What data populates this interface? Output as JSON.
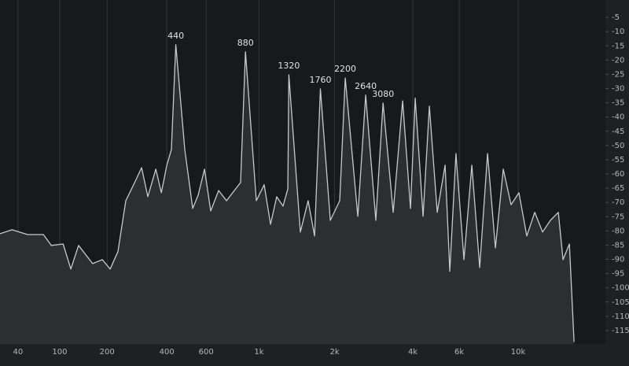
{
  "chart_data": {
    "type": "line",
    "xscale": "log",
    "grid": "x",
    "xlim": [
      20,
      21200
    ],
    "ylim": [
      -120,
      0
    ],
    "xticks": [
      40,
      100,
      200,
      400,
      600,
      {
        "value": 1000,
        "label": "1k"
      },
      {
        "value": 2000,
        "label": "2k"
      },
      {
        "value": 4000,
        "label": "4k"
      },
      {
        "value": 6000,
        "label": "6k"
      },
      {
        "value": 10000,
        "label": "10k"
      }
    ],
    "yticks": [
      -5,
      -10,
      -15,
      -20,
      -25,
      -30,
      -35,
      -40,
      -45,
      -50,
      -55,
      -60,
      -65,
      -70,
      -75,
      -80,
      -85,
      -90,
      -95,
      -100,
      -105,
      -110,
      -115
    ],
    "series": [
      {
        "color": "#c9c9cb",
        "fill": "#2c2e32",
        "x": [
          20,
          33,
          52,
          74,
          86,
          106,
          120,
          135,
          165,
          188,
          208,
          229,
          252,
          282,
          303,
          325,
          355,
          377,
          400,
          420,
          440,
          483,
          524,
          554,
          590,
          628,
          679,
          733,
          791,
          840,
          880,
          975,
          1050,
          1114,
          1180,
          1251,
          1308,
          1320,
          1467,
          1575,
          1670,
          1760,
          1924,
          2094,
          2200,
          2461,
          2640,
          2888,
          3080,
          3368,
          3660,
          3920,
          4086,
          4376,
          4623,
          4952,
          5305,
          5528,
          5832,
          6252,
          6694,
          7164,
          7672,
          8211,
          8790,
          9405,
          10066,
          10773,
          11535,
          12343,
          13206,
          14132,
          14720,
          15550,
          16185
        ],
        "values": [
          -81,
          -79.6,
          -81.3,
          -81.3,
          -85.1,
          -84.6,
          -93.4,
          -85.1,
          -91.5,
          -90.1,
          -93.4,
          -87.3,
          -69.4,
          -62.5,
          -57.8,
          -68,
          -58.3,
          -66.6,
          -56.9,
          -51.4,
          -14.6,
          -51.4,
          -72.1,
          -67.4,
          -58.3,
          -73,
          -65.8,
          -69.4,
          -65.8,
          -63,
          -17.1,
          -69.4,
          -63.8,
          -77.7,
          -68,
          -71.3,
          -65.2,
          -25.2,
          -80.4,
          -69.4,
          -81.8,
          -30.1,
          -76.3,
          -69.4,
          -26.3,
          -74.9,
          -32.3,
          -76.3,
          -35.1,
          -73.5,
          -34.3,
          -72.1,
          -33.4,
          -74.9,
          -36.2,
          -73.5,
          -56.9,
          -94.2,
          -52.8,
          -90.1,
          -56.9,
          -92.9,
          -52.8,
          -86,
          -58.3,
          -70.8,
          -66.6,
          -81.8,
          -73.5,
          -80.4,
          -76.3,
          -73.5,
          -90.1,
          -84.6,
          -119
        ]
      }
    ],
    "annotations": [
      {
        "text": "440",
        "x": 440,
        "y": -14.6
      },
      {
        "text": "880",
        "x": 880,
        "y": -17.1
      },
      {
        "text": "1320",
        "x": 1320,
        "y": -25.2
      },
      {
        "text": "1760",
        "x": 1760,
        "y": -30.1
      },
      {
        "text": "2200",
        "x": 2200,
        "y": -26.3
      },
      {
        "text": "2640",
        "x": 2640,
        "y": -32.3
      },
      {
        "text": "3080",
        "x": 3080,
        "y": -35.1
      }
    ]
  }
}
